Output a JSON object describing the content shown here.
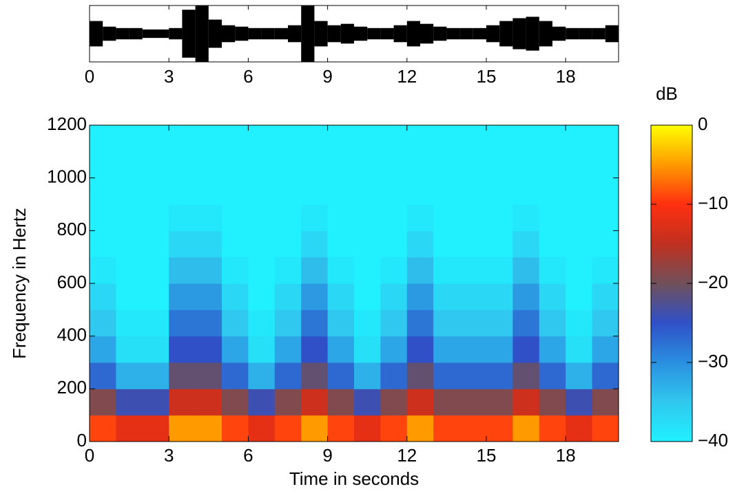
{
  "chart_data": [
    {
      "type": "waveform",
      "x": [
        0,
        0.5,
        1,
        1.5,
        2,
        2.5,
        3,
        3.5,
        4,
        4.5,
        5,
        5.5,
        6,
        6.5,
        7,
        7.5,
        8,
        8.5,
        9,
        9.5,
        10,
        10.5,
        11,
        11.5,
        12,
        12.5,
        13,
        13.5,
        14,
        14.5,
        15,
        15.5,
        16,
        16.5,
        17,
        17.5,
        18,
        18.5,
        19,
        19.5
      ],
      "values": [
        0.45,
        0.25,
        0.2,
        0.2,
        0.15,
        0.15,
        0.2,
        0.85,
        1.0,
        0.5,
        0.3,
        0.25,
        0.2,
        0.2,
        0.2,
        0.3,
        1.0,
        0.45,
        0.3,
        0.35,
        0.25,
        0.2,
        0.2,
        0.3,
        0.45,
        0.35,
        0.25,
        0.2,
        0.2,
        0.2,
        0.3,
        0.45,
        0.55,
        0.6,
        0.45,
        0.25,
        0.2,
        0.2,
        0.2,
        0.3
      ],
      "color": "#000000",
      "xlim": [
        0,
        20
      ],
      "ylim": [
        -1,
        1
      ],
      "xticks": [
        0,
        3,
        6,
        9,
        12,
        15,
        18
      ]
    },
    {
      "type": "heatmap",
      "xlabel": "Time in seconds",
      "ylabel": "Frequency in Hertz",
      "xbins": [
        0,
        1,
        2,
        3,
        4,
        5,
        6,
        7,
        8,
        9,
        10,
        11,
        12,
        13,
        14,
        15,
        16,
        17,
        18,
        19,
        20
      ],
      "ybins": [
        0,
        100,
        200,
        300,
        400,
        500,
        600,
        700,
        800,
        900,
        1000,
        1100,
        1200
      ],
      "values": [
        [
          -9,
          -12,
          -12,
          -5,
          -5,
          -9,
          -12,
          -9,
          -5,
          -9,
          -12,
          -9,
          -5,
          -9,
          -9,
          -9,
          -5,
          -9,
          -12,
          -9
        ],
        [
          -19,
          -24,
          -24,
          -14,
          -14,
          -19,
          -24,
          -19,
          -14,
          -19,
          -24,
          -19,
          -14,
          -19,
          -19,
          -19,
          -14,
          -19,
          -24,
          -19
        ],
        [
          -27,
          -33,
          -33,
          -21,
          -21,
          -27,
          -33,
          -27,
          -21,
          -27,
          -33,
          -27,
          -21,
          -27,
          -27,
          -27,
          -21,
          -27,
          -33,
          -27
        ],
        [
          -32,
          -38,
          -38,
          -25,
          -25,
          -32,
          -38,
          -32,
          -25,
          -32,
          -38,
          -32,
          -25,
          -32,
          -32,
          -32,
          -25,
          -32,
          -38,
          -32
        ],
        [
          -35,
          -39,
          -39,
          -28,
          -28,
          -35,
          -39,
          -35,
          -28,
          -35,
          -39,
          -35,
          -28,
          -35,
          -35,
          -35,
          -28,
          -35,
          -39,
          -35
        ],
        [
          -37,
          -40,
          -40,
          -31,
          -31,
          -37,
          -40,
          -37,
          -31,
          -37,
          -40,
          -37,
          -31,
          -37,
          -37,
          -37,
          -31,
          -37,
          -40,
          -37
        ],
        [
          -39,
          -40,
          -40,
          -34,
          -34,
          -39,
          -40,
          -39,
          -34,
          -39,
          -40,
          -39,
          -34,
          -39,
          -39,
          -39,
          -34,
          -39,
          -40,
          -39
        ],
        [
          -40,
          -40,
          -40,
          -37,
          -37,
          -40,
          -40,
          -40,
          -37,
          -40,
          -40,
          -40,
          -37,
          -40,
          -40,
          -40,
          -37,
          -40,
          -40,
          -40
        ],
        [
          -40,
          -40,
          -40,
          -39,
          -39,
          -40,
          -40,
          -40,
          -39,
          -40,
          -40,
          -40,
          -39,
          -40,
          -40,
          -40,
          -39,
          -40,
          -40,
          -40
        ],
        [
          -40,
          -40,
          -40,
          -40,
          -40,
          -40,
          -40,
          -40,
          -40,
          -40,
          -40,
          -40,
          -40,
          -40,
          -40,
          -40,
          -40,
          -40,
          -40,
          -40
        ],
        [
          -40,
          -40,
          -40,
          -40,
          -40,
          -40,
          -40,
          -40,
          -40,
          -40,
          -40,
          -40,
          -40,
          -40,
          -40,
          -40,
          -40,
          -40,
          -40,
          -40
        ],
        [
          -40,
          -40,
          -40,
          -40,
          -40,
          -40,
          -40,
          -40,
          -40,
          -40,
          -40,
          -40,
          -40,
          -40,
          -40,
          -40,
          -40,
          -40,
          -40,
          -40
        ]
      ],
      "xlim": [
        0,
        20
      ],
      "ylim": [
        0,
        1200
      ],
      "xticks": [
        0,
        3,
        6,
        9,
        12,
        15,
        18
      ],
      "yticks": [
        0,
        200,
        400,
        600,
        800,
        1000,
        1200
      ],
      "colorbar_label": "dB",
      "clim": [
        -40,
        0
      ],
      "cticks": [
        {
          "value": -40,
          "label": "−40"
        },
        {
          "value": -30,
          "label": "−30"
        },
        {
          "value": -20,
          "label": "−20"
        },
        {
          "value": -10,
          "label": "−10"
        },
        0
      ],
      "colormap": [
        "#20f0ff",
        "#30c8ee",
        "#2a8fe0",
        "#3050c8",
        "#70505a",
        "#c03020",
        "#ff3010",
        "#ff9a00",
        "#ffff00"
      ]
    }
  ]
}
